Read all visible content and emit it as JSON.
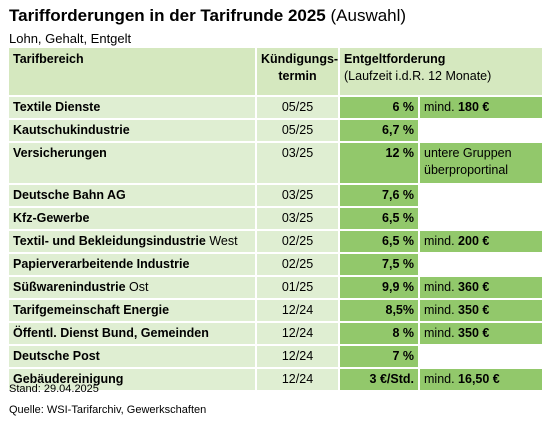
{
  "title": "Tarifforderungen in der Tarifrunde 2025",
  "title_suffix": "(Auswahl)",
  "subtitle": "Lohn, Gehalt, Entgelt",
  "headers": {
    "area": "Tarifbereich",
    "term_line1": "Kündigungs-",
    "term_line2": "termin",
    "demand_line1": "Entgeltforderung",
    "demand_line2": "(Laufzeit i.d.R. 12 Monate)"
  },
  "rows": [
    {
      "name": "Textile Dienste",
      "suffix": "",
      "term": "05/25",
      "value": "6 %",
      "note_pre": "mind. ",
      "note_bold": "180 €"
    },
    {
      "name": "Kautschukindustrie",
      "suffix": "",
      "term": "05/25",
      "value": "6,7 %",
      "note_pre": "",
      "note_bold": ""
    },
    {
      "name": "Versicherungen",
      "suffix": "",
      "term": "03/25",
      "value": "12 %",
      "note_pre": "untere Gruppen überproportinal",
      "note_bold": ""
    },
    {
      "name": "Deutsche Bahn AG",
      "suffix": "",
      "term": "03/25",
      "value": "7,6 %",
      "note_pre": "",
      "note_bold": ""
    },
    {
      "name": "Kfz-Gewerbe",
      "suffix": "",
      "term": "03/25",
      "value": "6,5 %",
      "note_pre": "",
      "note_bold": ""
    },
    {
      "name": "Textil- und Bekleidungsindustrie",
      "suffix": " West",
      "term": "02/25",
      "value": "6,5 %",
      "note_pre": "mind. ",
      "note_bold": "200 €"
    },
    {
      "name": "Papierverarbeitende Industrie",
      "suffix": "",
      "term": "02/25",
      "value": "7,5 %",
      "note_pre": "",
      "note_bold": ""
    },
    {
      "name": "Süßwarenindustrie",
      "suffix": " Ost",
      "term": "01/25",
      "value": "9,9 %",
      "note_pre": "mind. ",
      "note_bold": "360 €"
    },
    {
      "name": "Tarifgemeinschaft Energie",
      "suffix": "",
      "term": "12/24",
      "value": "8,5%",
      "note_pre": "mind. ",
      "note_bold": "350 €"
    },
    {
      "name": "Öffentl. Dienst Bund, Gemeinden",
      "suffix": "",
      "term": "12/24",
      "value": "8 %",
      "note_pre": "mind. ",
      "note_bold": "350 €"
    },
    {
      "name": "Deutsche Post",
      "suffix": "",
      "term": "12/24",
      "value": "7 %",
      "note_pre": "",
      "note_bold": ""
    },
    {
      "name": "Gebäudereinigung",
      "suffix": "",
      "term": "12/24",
      "value": "3 €/Std.",
      "note_pre": "mind. ",
      "note_bold": "16,50 €"
    }
  ],
  "footer": {
    "stand": "Stand: 29.04.2025",
    "source": "Quelle: WSI-Tarifarchiv, Gewerkschaften"
  }
}
